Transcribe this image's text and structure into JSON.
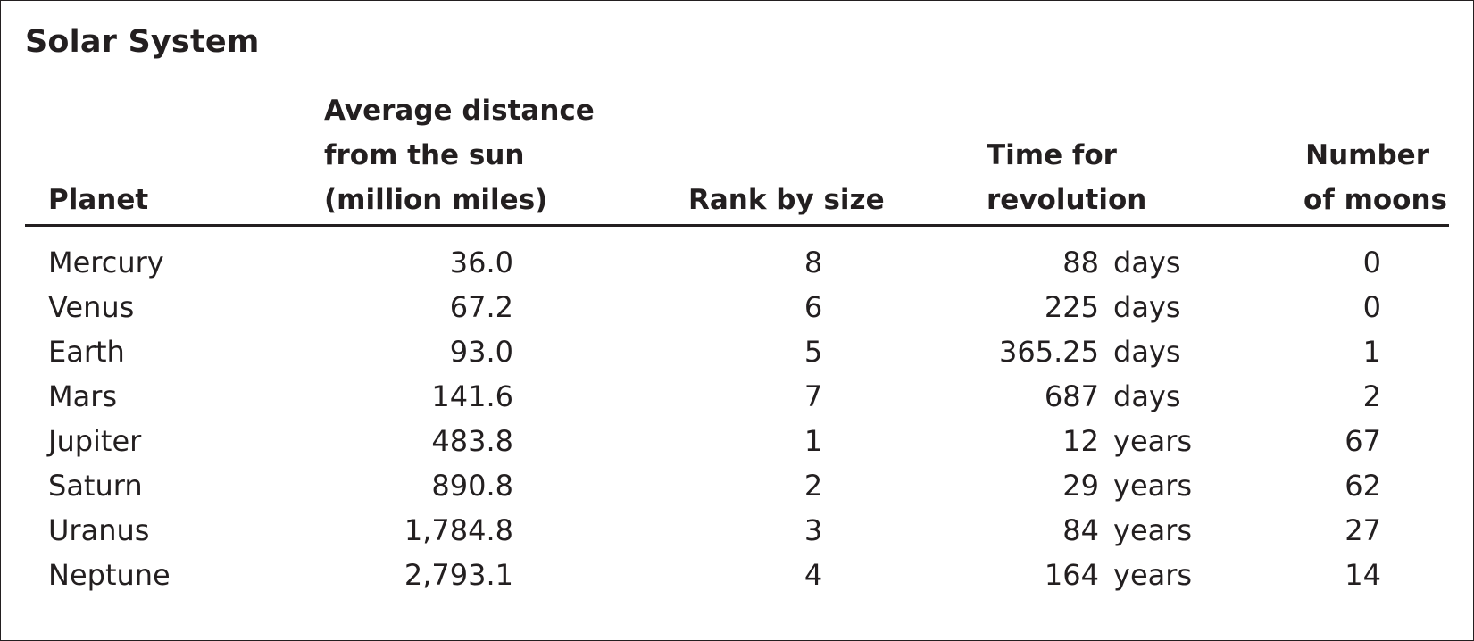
{
  "title": "Solar System",
  "columns": {
    "planet": "Planet",
    "distance": [
      "Average distance",
      "from the sun",
      "(million miles)"
    ],
    "rank": "Rank by size",
    "revolution": [
      "Time for",
      "revolution"
    ],
    "moons": [
      "Number",
      "of moons"
    ]
  },
  "rows": [
    {
      "planet": "Mercury",
      "distance": "36.0",
      "rank": "8",
      "rev_value": "88",
      "rev_unit": "days",
      "moons": "0"
    },
    {
      "planet": "Venus",
      "distance": "67.2",
      "rank": "6",
      "rev_value": "225",
      "rev_unit": "days",
      "moons": "0"
    },
    {
      "planet": "Earth",
      "distance": "93.0",
      "rank": "5",
      "rev_value": "365.25",
      "rev_unit": "days",
      "moons": "1"
    },
    {
      "planet": "Mars",
      "distance": "141.6",
      "rank": "7",
      "rev_value": "687",
      "rev_unit": "days",
      "moons": "2"
    },
    {
      "planet": "Jupiter",
      "distance": "483.8",
      "rank": "1",
      "rev_value": "12",
      "rev_unit": "years",
      "moons": "67"
    },
    {
      "planet": "Saturn",
      "distance": "890.8",
      "rank": "2",
      "rev_value": "29",
      "rev_unit": "years",
      "moons": "62"
    },
    {
      "planet": "Uranus",
      "distance": "1,784.8",
      "rank": "3",
      "rev_value": "84",
      "rev_unit": "years",
      "moons": "27"
    },
    {
      "planet": "Neptune",
      "distance": "2,793.1",
      "rank": "4",
      "rev_value": "164",
      "rev_unit": "years",
      "moons": "14"
    }
  ]
}
